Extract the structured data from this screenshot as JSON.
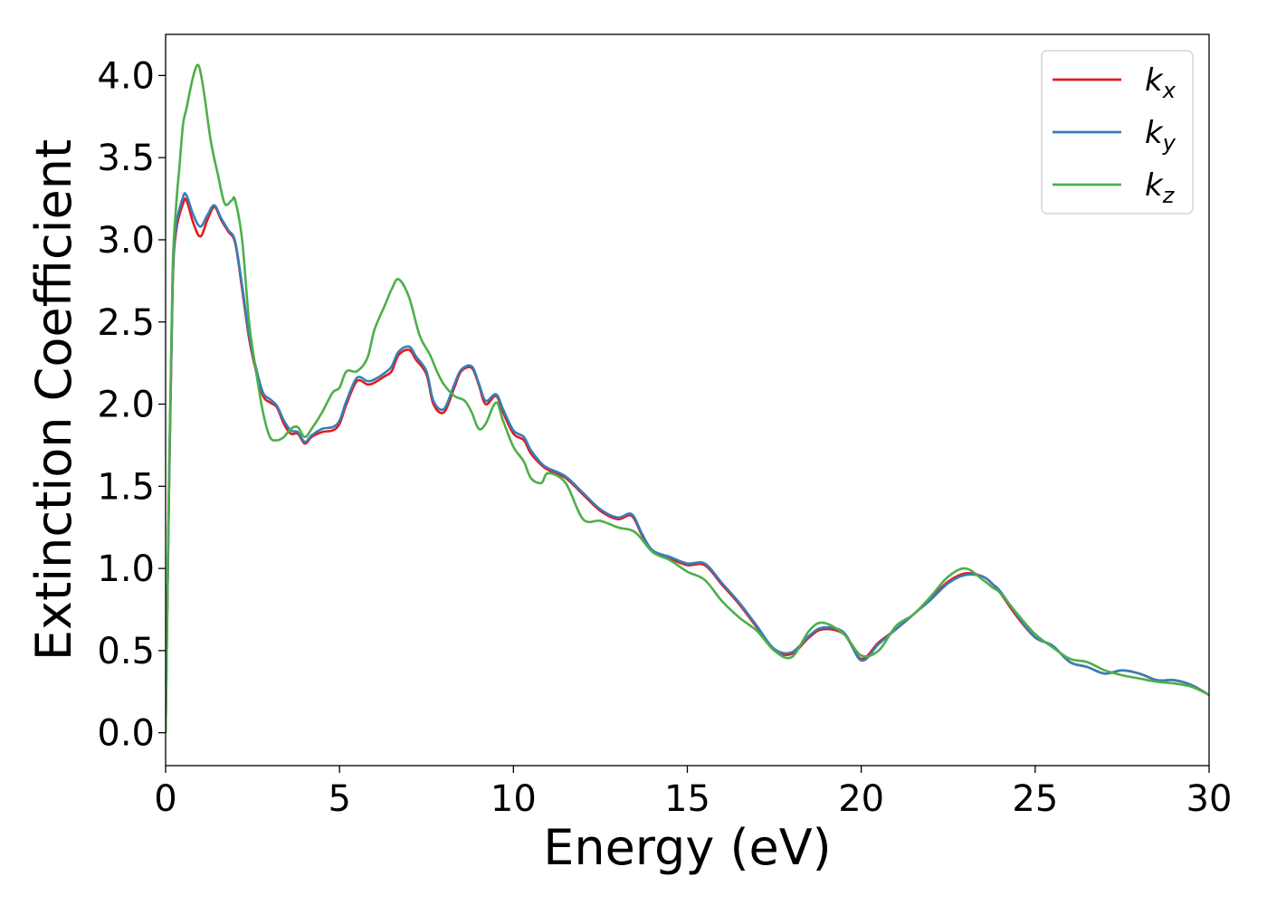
{
  "chart_data": {
    "type": "line",
    "title": "",
    "xlabel": "Energy (eV)",
    "ylabel": "Extinction Coefficient",
    "xlim": [
      0,
      30
    ],
    "ylim": [
      -0.2,
      4.25
    ],
    "xticks": [
      0,
      5,
      10,
      15,
      20,
      25,
      30
    ],
    "xtick_labels": [
      "0",
      "5",
      "10",
      "15",
      "20",
      "25",
      "30"
    ],
    "yticks": [
      0.0,
      0.5,
      1.0,
      1.5,
      2.0,
      2.5,
      3.0,
      3.5,
      4.0
    ],
    "ytick_labels": [
      "0.0",
      "0.5",
      "1.0",
      "1.5",
      "2.0",
      "2.5",
      "3.0",
      "3.5",
      "4.0"
    ],
    "grid": false,
    "legend_position": "top-right",
    "series": [
      {
        "name": "k_x",
        "legend_main": "k",
        "legend_sub": "x",
        "color": "#e41a1c",
        "x": [
          0,
          0.1,
          0.2,
          0.3,
          0.5,
          0.6,
          0.8,
          1.0,
          1.2,
          1.4,
          1.6,
          1.8,
          2.0,
          2.2,
          2.4,
          2.6,
          2.8,
          3.0,
          3.2,
          3.4,
          3.6,
          3.8,
          4.0,
          4.2,
          4.5,
          4.8,
          5.0,
          5.2,
          5.5,
          5.8,
          6.0,
          6.3,
          6.5,
          6.7,
          7.0,
          7.2,
          7.5,
          7.7,
          8.0,
          8.3,
          8.5,
          8.8,
          9.0,
          9.2,
          9.5,
          9.7,
          10.0,
          10.3,
          10.5,
          10.8,
          11.0,
          11.5,
          12.0,
          12.5,
          13.0,
          13.4,
          13.7,
          14.0,
          14.5,
          15.0,
          15.5,
          16.0,
          16.5,
          17.0,
          17.5,
          18.0,
          18.5,
          18.9,
          19.5,
          20.0,
          20.5,
          21.0,
          21.5,
          22.0,
          22.5,
          23.0,
          23.5,
          23.8,
          24.0,
          24.5,
          25.0,
          25.5,
          26.0,
          26.5,
          27.0,
          27.5,
          28.0,
          28.5,
          29.0,
          29.5,
          30.0
        ],
        "y": [
          0.0,
          1.5,
          2.7,
          3.05,
          3.22,
          3.24,
          3.1,
          3.02,
          3.12,
          3.2,
          3.12,
          3.05,
          2.98,
          2.7,
          2.4,
          2.2,
          2.05,
          2.01,
          1.98,
          1.88,
          1.82,
          1.82,
          1.76,
          1.8,
          1.83,
          1.84,
          1.88,
          2.0,
          2.14,
          2.12,
          2.13,
          2.17,
          2.2,
          2.3,
          2.33,
          2.27,
          2.18,
          2.0,
          1.95,
          2.1,
          2.2,
          2.22,
          2.12,
          2.0,
          2.05,
          1.95,
          1.82,
          1.78,
          1.7,
          1.63,
          1.6,
          1.55,
          1.45,
          1.35,
          1.3,
          1.32,
          1.2,
          1.1,
          1.06,
          1.02,
          1.02,
          0.9,
          0.78,
          0.64,
          0.5,
          0.48,
          0.58,
          0.63,
          0.6,
          0.45,
          0.55,
          0.63,
          0.72,
          0.82,
          0.92,
          0.97,
          0.95,
          0.9,
          0.85,
          0.7,
          0.58,
          0.53,
          0.43,
          0.4,
          0.36,
          0.38,
          0.36,
          0.32,
          0.32,
          0.29,
          0.23
        ]
      },
      {
        "name": "k_y",
        "legend_main": "k",
        "legend_sub": "y",
        "color": "#377eb8",
        "x": [
          0,
          0.1,
          0.2,
          0.3,
          0.5,
          0.6,
          0.8,
          1.0,
          1.2,
          1.4,
          1.6,
          1.8,
          2.0,
          2.2,
          2.4,
          2.6,
          2.8,
          3.0,
          3.2,
          3.4,
          3.6,
          3.8,
          4.0,
          4.2,
          4.5,
          4.8,
          5.0,
          5.2,
          5.5,
          5.8,
          6.0,
          6.3,
          6.5,
          6.7,
          7.0,
          7.2,
          7.5,
          7.7,
          8.0,
          8.3,
          8.5,
          8.8,
          9.0,
          9.2,
          9.5,
          9.7,
          10.0,
          10.3,
          10.5,
          10.8,
          11.0,
          11.5,
          12.0,
          12.5,
          13.0,
          13.4,
          13.7,
          14.0,
          14.5,
          15.0,
          15.5,
          16.0,
          16.5,
          17.0,
          17.5,
          18.0,
          18.5,
          18.9,
          19.5,
          20.0,
          20.5,
          21.0,
          21.5,
          22.0,
          22.5,
          23.0,
          23.5,
          23.8,
          24.0,
          24.5,
          25.0,
          25.5,
          26.0,
          26.5,
          27.0,
          27.5,
          28.0,
          28.5,
          29.0,
          29.5,
          30.0
        ],
        "y": [
          0.0,
          1.5,
          2.72,
          3.08,
          3.26,
          3.27,
          3.15,
          3.08,
          3.15,
          3.21,
          3.13,
          3.06,
          2.99,
          2.72,
          2.42,
          2.22,
          2.07,
          2.03,
          1.99,
          1.9,
          1.84,
          1.83,
          1.77,
          1.81,
          1.85,
          1.86,
          1.9,
          2.02,
          2.16,
          2.14,
          2.15,
          2.19,
          2.23,
          2.32,
          2.35,
          2.29,
          2.2,
          2.02,
          1.97,
          2.12,
          2.21,
          2.23,
          2.13,
          2.02,
          2.06,
          1.97,
          1.84,
          1.8,
          1.72,
          1.64,
          1.61,
          1.56,
          1.46,
          1.36,
          1.31,
          1.33,
          1.21,
          1.11,
          1.07,
          1.03,
          1.03,
          0.91,
          0.79,
          0.65,
          0.51,
          0.49,
          0.59,
          0.64,
          0.61,
          0.44,
          0.54,
          0.63,
          0.72,
          0.81,
          0.91,
          0.96,
          0.95,
          0.9,
          0.86,
          0.71,
          0.58,
          0.53,
          0.43,
          0.4,
          0.36,
          0.38,
          0.36,
          0.32,
          0.32,
          0.29,
          0.23
        ]
      },
      {
        "name": "k_z",
        "legend_main": "k",
        "legend_sub": "z",
        "color": "#4daf4a",
        "x": [
          0,
          0.1,
          0.2,
          0.3,
          0.4,
          0.5,
          0.6,
          0.8,
          0.95,
          1.1,
          1.3,
          1.5,
          1.7,
          1.9,
          2.0,
          2.2,
          2.4,
          2.6,
          2.8,
          3.0,
          3.2,
          3.4,
          3.6,
          3.8,
          4.0,
          4.2,
          4.5,
          4.8,
          5.0,
          5.2,
          5.5,
          5.8,
          6.0,
          6.3,
          6.5,
          6.7,
          7.0,
          7.3,
          7.6,
          7.8,
          8.0,
          8.3,
          8.6,
          8.8,
          9.0,
          9.2,
          9.5,
          9.7,
          10.0,
          10.3,
          10.5,
          10.8,
          11.0,
          11.5,
          12.0,
          12.5,
          13.0,
          13.5,
          14.0,
          14.5,
          15.0,
          15.5,
          16.0,
          16.5,
          17.0,
          17.5,
          18.0,
          18.5,
          18.9,
          19.5,
          20.0,
          20.5,
          21.0,
          21.5,
          22.0,
          22.5,
          23.0,
          23.5,
          23.8,
          24.0,
          24.5,
          25.0,
          25.5,
          26.0,
          26.5,
          27.0,
          27.5,
          28.0,
          28.5,
          29.0,
          29.5,
          30.0
        ],
        "y": [
          0.0,
          1.6,
          2.8,
          3.2,
          3.45,
          3.7,
          3.8,
          4.0,
          4.06,
          3.9,
          3.6,
          3.4,
          3.22,
          3.24,
          3.24,
          3.0,
          2.5,
          2.2,
          1.95,
          1.8,
          1.78,
          1.8,
          1.85,
          1.86,
          1.8,
          1.85,
          1.95,
          2.07,
          2.1,
          2.2,
          2.2,
          2.28,
          2.45,
          2.6,
          2.7,
          2.76,
          2.65,
          2.42,
          2.3,
          2.2,
          2.12,
          2.05,
          2.02,
          1.95,
          1.85,
          1.88,
          2.01,
          1.9,
          1.74,
          1.65,
          1.55,
          1.52,
          1.58,
          1.52,
          1.3,
          1.29,
          1.25,
          1.22,
          1.1,
          1.05,
          0.98,
          0.93,
          0.8,
          0.7,
          0.62,
          0.5,
          0.46,
          0.62,
          0.67,
          0.6,
          0.47,
          0.5,
          0.65,
          0.72,
          0.83,
          0.95,
          1.0,
          0.93,
          0.88,
          0.85,
          0.72,
          0.6,
          0.52,
          0.45,
          0.43,
          0.38,
          0.35,
          0.33,
          0.31,
          0.3,
          0.28,
          0.23
        ]
      }
    ]
  }
}
